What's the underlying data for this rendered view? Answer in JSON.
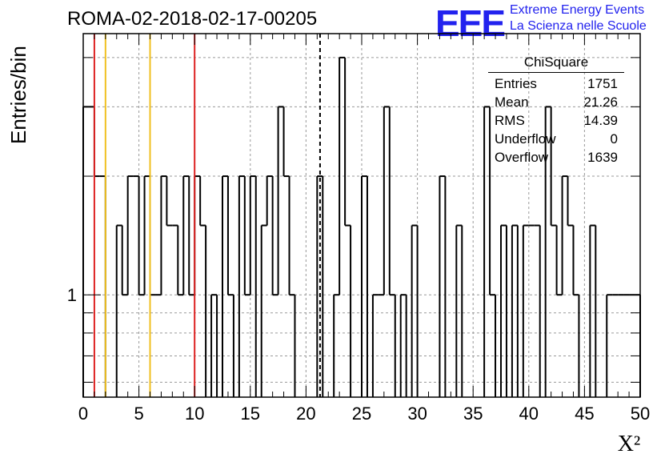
{
  "title": "ROMA-02-2018-02-17-00205",
  "logo": {
    "text": "EEE",
    "line1": "Extreme Energy Events",
    "line2": "La Scienza nelle Scuole",
    "color": "#2222ee"
  },
  "stats": {
    "title": "ChiSquare",
    "rows": [
      {
        "label": "Entries",
        "value": "1751"
      },
      {
        "label": "Mean",
        "value": "21.26"
      },
      {
        "label": "RMS",
        "value": "14.39"
      },
      {
        "label": "Underflow",
        "value": "0"
      },
      {
        "label": "Overflow",
        "value": "1639"
      }
    ]
  },
  "chart_data": {
    "type": "histogram",
    "title": "ROMA-02-2018-02-17-00205",
    "xlabel": "X²",
    "ylabel": "Entries/bin",
    "xlim": [
      0,
      50
    ],
    "ylim": [
      0.55,
      4.6
    ],
    "yscale": "log",
    "grid": true,
    "bin_width": 0.5,
    "x_ticks": [
      0,
      5,
      10,
      15,
      20,
      25,
      30,
      35,
      40,
      45,
      50
    ],
    "y_tick_labels": [
      {
        "value": 1,
        "label": "1"
      }
    ],
    "bins": [
      {
        "x0": 0.0,
        "y": 3
      },
      {
        "x0": 0.5,
        "y": 3
      },
      {
        "x0": 1.0,
        "y": 2
      },
      {
        "x0": 1.5,
        "y": 2
      },
      {
        "x0": 2.0,
        "y": 0
      },
      {
        "x0": 2.5,
        "y": 0
      },
      {
        "x0": 3.0,
        "y": 1.5
      },
      {
        "x0": 3.5,
        "y": 1
      },
      {
        "x0": 4.0,
        "y": 2
      },
      {
        "x0": 4.5,
        "y": 2
      },
      {
        "x0": 5.0,
        "y": 1
      },
      {
        "x0": 5.5,
        "y": 2
      },
      {
        "x0": 6.0,
        "y": 1
      },
      {
        "x0": 6.5,
        "y": 1
      },
      {
        "x0": 7.0,
        "y": 2
      },
      {
        "x0": 7.5,
        "y": 1.5
      },
      {
        "x0": 8.0,
        "y": 1.5
      },
      {
        "x0": 8.5,
        "y": 1
      },
      {
        "x0": 9.0,
        "y": 2
      },
      {
        "x0": 9.5,
        "y": 1
      },
      {
        "x0": 10.0,
        "y": 2
      },
      {
        "x0": 10.5,
        "y": 1.5
      },
      {
        "x0": 11.0,
        "y": 0
      },
      {
        "x0": 11.5,
        "y": 1
      },
      {
        "x0": 12.0,
        "y": 0
      },
      {
        "x0": 12.5,
        "y": 2
      },
      {
        "x0": 13.0,
        "y": 1
      },
      {
        "x0": 13.5,
        "y": 0
      },
      {
        "x0": 14.0,
        "y": 2
      },
      {
        "x0": 14.5,
        "y": 1
      },
      {
        "x0": 15.0,
        "y": 2
      },
      {
        "x0": 15.5,
        "y": 0
      },
      {
        "x0": 16.0,
        "y": 1.5
      },
      {
        "x0": 16.5,
        "y": 2
      },
      {
        "x0": 17.0,
        "y": 1
      },
      {
        "x0": 17.5,
        "y": 3
      },
      {
        "x0": 18.0,
        "y": 2
      },
      {
        "x0": 18.5,
        "y": 1
      },
      {
        "x0": 19.0,
        "y": 0
      },
      {
        "x0": 19.5,
        "y": 0
      },
      {
        "x0": 20.0,
        "y": 0
      },
      {
        "x0": 20.5,
        "y": 0
      },
      {
        "x0": 21.0,
        "y": 2
      },
      {
        "x0": 21.5,
        "y": 0
      },
      {
        "x0": 22.0,
        "y": 0
      },
      {
        "x0": 22.5,
        "y": 1
      },
      {
        "x0": 23.0,
        "y": 4
      },
      {
        "x0": 23.5,
        "y": 1.5
      },
      {
        "x0": 24.0,
        "y": 0
      },
      {
        "x0": 24.5,
        "y": 0
      },
      {
        "x0": 25.0,
        "y": 2
      },
      {
        "x0": 25.5,
        "y": 0
      },
      {
        "x0": 26.0,
        "y": 1
      },
      {
        "x0": 26.5,
        "y": 1
      },
      {
        "x0": 27.0,
        "y": 3
      },
      {
        "x0": 27.5,
        "y": 1
      },
      {
        "x0": 28.0,
        "y": 0
      },
      {
        "x0": 28.5,
        "y": 1
      },
      {
        "x0": 29.0,
        "y": 0
      },
      {
        "x0": 29.5,
        "y": 1.5
      },
      {
        "x0": 30.0,
        "y": 0
      },
      {
        "x0": 30.5,
        "y": 0
      },
      {
        "x0": 31.0,
        "y": 0
      },
      {
        "x0": 31.5,
        "y": 0
      },
      {
        "x0": 32.0,
        "y": 2
      },
      {
        "x0": 32.5,
        "y": 0
      },
      {
        "x0": 33.0,
        "y": 0
      },
      {
        "x0": 33.5,
        "y": 1.5
      },
      {
        "x0": 34.0,
        "y": 0
      },
      {
        "x0": 34.5,
        "y": 0
      },
      {
        "x0": 35.0,
        "y": 0
      },
      {
        "x0": 35.5,
        "y": 0
      },
      {
        "x0": 36.0,
        "y": 3
      },
      {
        "x0": 36.5,
        "y": 1
      },
      {
        "x0": 37.0,
        "y": 0
      },
      {
        "x0": 37.5,
        "y": 1.5
      },
      {
        "x0": 38.0,
        "y": 0
      },
      {
        "x0": 38.5,
        "y": 1.5
      },
      {
        "x0": 39.0,
        "y": 0
      },
      {
        "x0": 39.5,
        "y": 1.5
      },
      {
        "x0": 40.0,
        "y": 1.5
      },
      {
        "x0": 40.5,
        "y": 1.5
      },
      {
        "x0": 41.0,
        "y": 0
      },
      {
        "x0": 41.5,
        "y": 3
      },
      {
        "x0": 42.0,
        "y": 1.5
      },
      {
        "x0": 42.5,
        "y": 1
      },
      {
        "x0": 43.0,
        "y": 2
      },
      {
        "x0": 43.5,
        "y": 1.5
      },
      {
        "x0": 44.0,
        "y": 1
      },
      {
        "x0": 44.5,
        "y": 0
      },
      {
        "x0": 45.0,
        "y": 0
      },
      {
        "x0": 45.5,
        "y": 1.5
      },
      {
        "x0": 46.0,
        "y": 0
      },
      {
        "x0": 46.5,
        "y": 0
      },
      {
        "x0": 47.0,
        "y": 1
      },
      {
        "x0": 47.5,
        "y": 1
      },
      {
        "x0": 48.0,
        "y": 1
      },
      {
        "x0": 48.5,
        "y": 1
      },
      {
        "x0": 49.0,
        "y": 1
      },
      {
        "x0": 49.5,
        "y": 1
      }
    ],
    "markers": [
      {
        "x": 1,
        "color": "#dd2222",
        "style": "solid"
      },
      {
        "x": 2,
        "color": "#f0c020",
        "style": "solid"
      },
      {
        "x": 6,
        "color": "#f0c020",
        "style": "solid"
      },
      {
        "x": 10,
        "color": "#dd2222",
        "style": "solid"
      },
      {
        "x": 21.26,
        "color": "#000000",
        "style": "dashed"
      }
    ]
  }
}
